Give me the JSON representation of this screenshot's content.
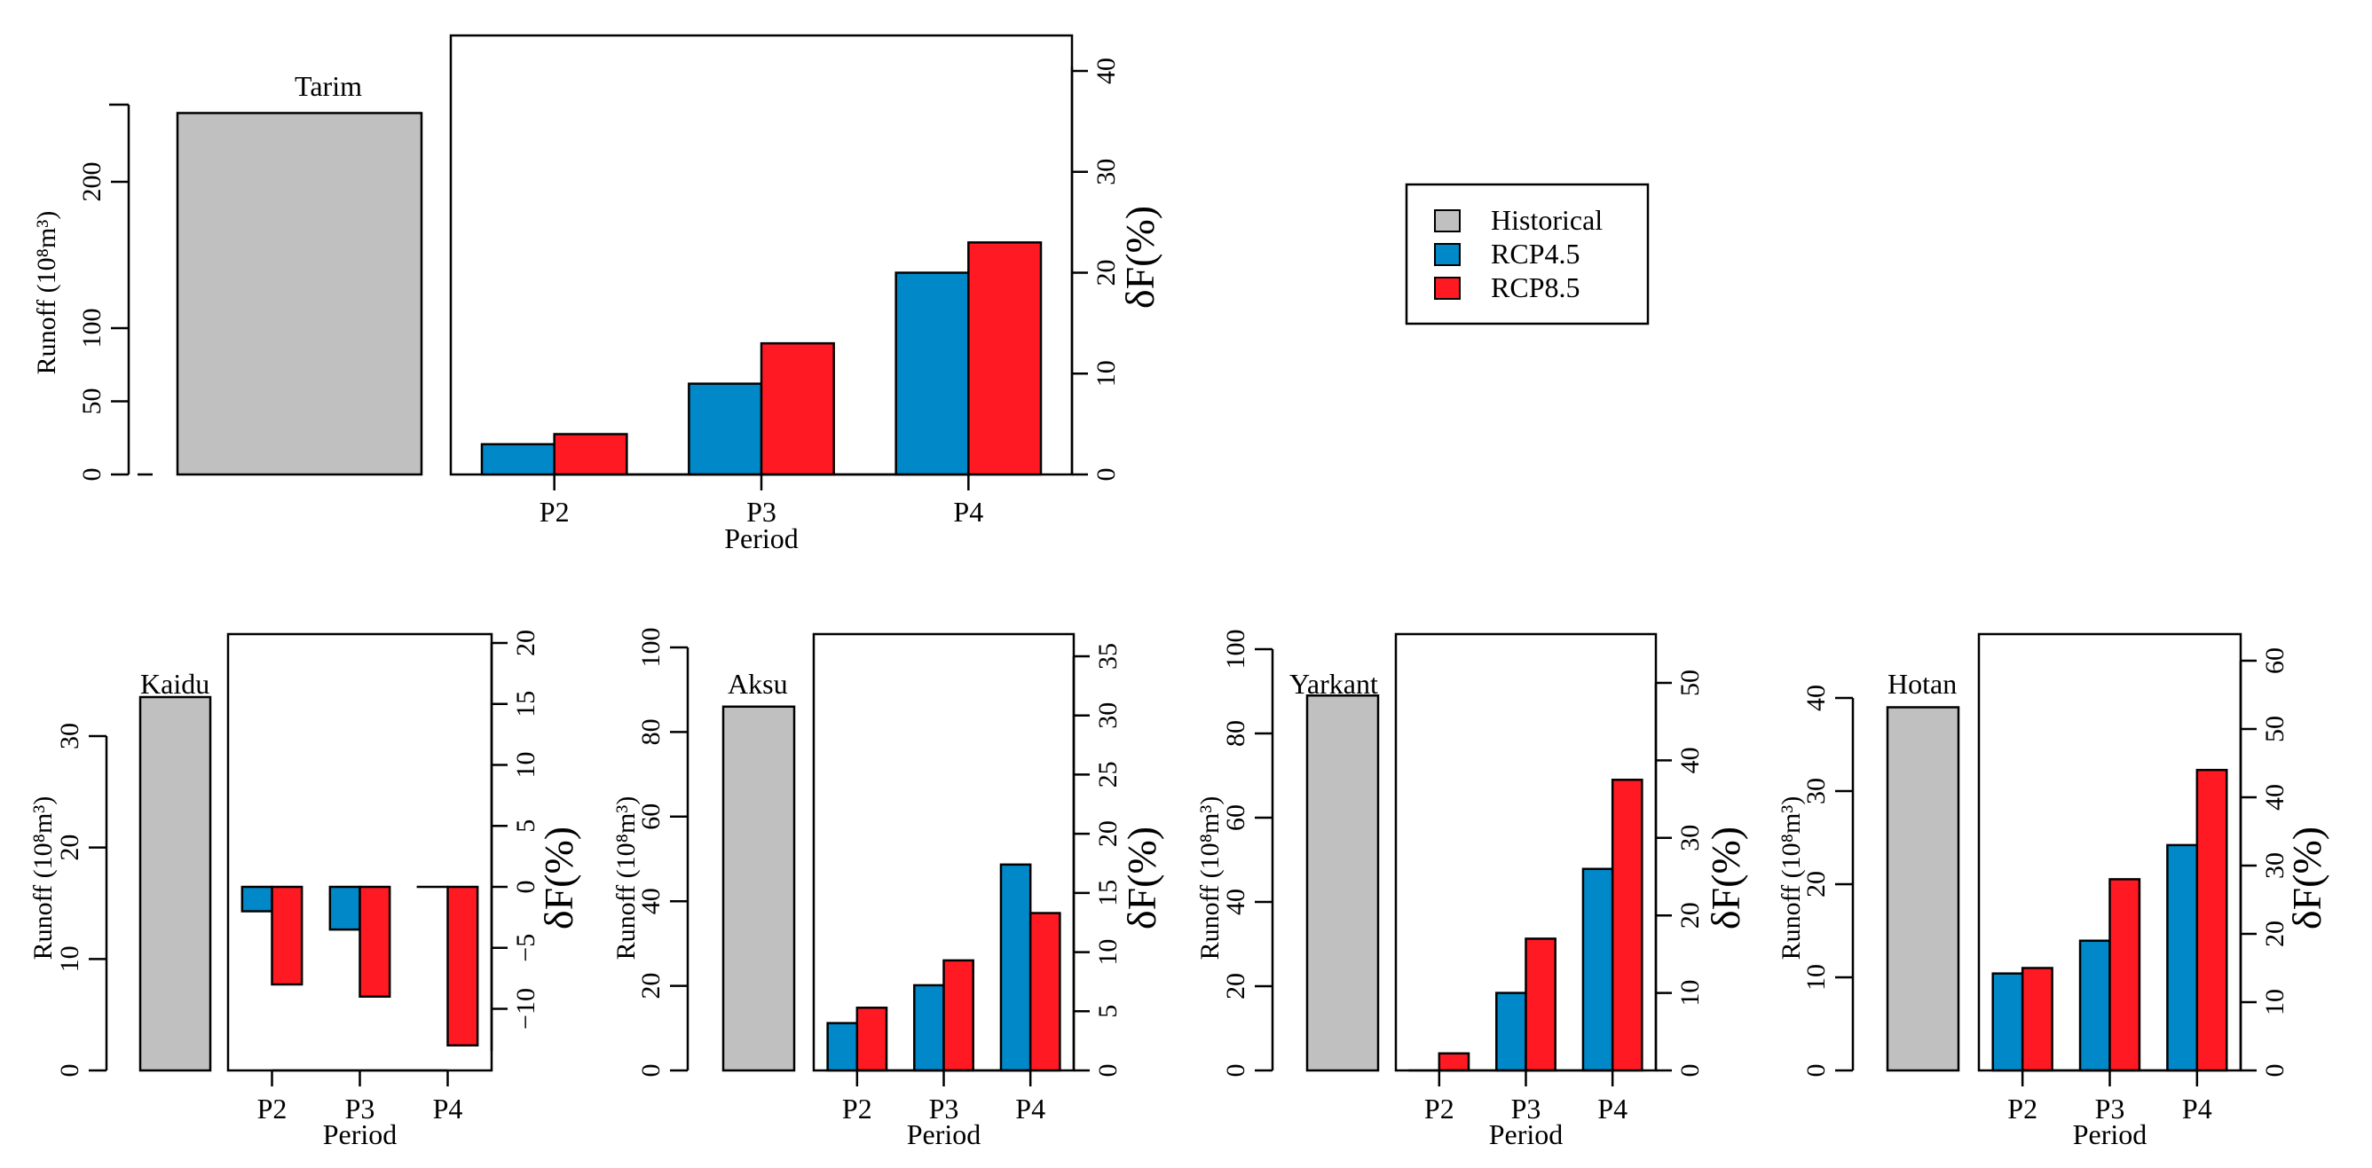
{
  "colors": {
    "historical": "#c0c0c0",
    "rcp45": "#0088c8",
    "rcp85": "#ff1a23"
  },
  "legend": {
    "placement": "top-right",
    "items": [
      {
        "label": "Historical",
        "color": "#c0c0c0"
      },
      {
        "label": "RCP4.5",
        "color": "#0088c8"
      },
      {
        "label": "RCP8.5",
        "color": "#ff1a23"
      }
    ]
  },
  "chart_data": [
    {
      "id": "tarim",
      "type": "bar",
      "title": "Tarim",
      "runoff_ylabel": "Runoff (10⁸m³)",
      "runoff_ylim": [
        0,
        250
      ],
      "runoff_ticks": [
        0,
        50,
        100,
        200
      ],
      "historical_runoff": 247,
      "delta_ylabel": "δF(%)",
      "delta_ylim": [
        0,
        40
      ],
      "delta_ticks": [
        0,
        10,
        20,
        30,
        40
      ],
      "categories": [
        "P2",
        "P3",
        "P4"
      ],
      "xlabel": "Period",
      "series": [
        {
          "name": "RCP4.5",
          "values": [
            3,
            9,
            20
          ]
        },
        {
          "name": "RCP8.5",
          "values": [
            4,
            13,
            23
          ]
        }
      ]
    },
    {
      "id": "kaidu",
      "type": "bar",
      "title": "Kaidu",
      "runoff_ylabel": "Runoff (10⁸m³)",
      "runoff_ylim": [
        0,
        35
      ],
      "runoff_ticks": [
        0,
        10,
        20,
        30
      ],
      "historical_runoff": 33.5,
      "delta_ylabel": "δF(%)",
      "delta_ylim": [
        -14,
        20
      ],
      "delta_ticks": [
        -10,
        -5,
        0,
        5,
        10,
        15,
        20
      ],
      "categories": [
        "P2",
        "P3",
        "P4"
      ],
      "xlabel": "Period",
      "series": [
        {
          "name": "RCP4.5",
          "values": [
            -2,
            -3.5,
            0
          ]
        },
        {
          "name": "RCP8.5",
          "values": [
            -8,
            -9,
            -13
          ]
        }
      ]
    },
    {
      "id": "aksu",
      "type": "bar",
      "title": "Aksu",
      "runoff_ylabel": "Runoff (10⁸m³)",
      "runoff_ylim": [
        0,
        100
      ],
      "runoff_ticks": [
        0,
        20,
        40,
        60,
        80,
        100
      ],
      "historical_runoff": 86,
      "delta_ylabel": "δF(%)",
      "delta_ylim": [
        0,
        36.5
      ],
      "delta_ticks": [
        0,
        5,
        10,
        15,
        20,
        25,
        30,
        35
      ],
      "categories": [
        "P2",
        "P3",
        "P4"
      ],
      "xlabel": "Period",
      "series": [
        {
          "name": "RCP4.5",
          "values": [
            4,
            7.2,
            17.4
          ]
        },
        {
          "name": "RCP8.5",
          "values": [
            5.3,
            9.3,
            13.3
          ]
        }
      ]
    },
    {
      "id": "yarkant",
      "type": "bar",
      "title": "Yarkant",
      "runoff_ylabel": "Runoff (10⁸m³)",
      "runoff_ylim": [
        0,
        100
      ],
      "runoff_ticks": [
        0,
        20,
        40,
        60,
        80,
        100
      ],
      "historical_runoff": 89,
      "delta_ylabel": "δF(%)",
      "delta_ylim": [
        0,
        57
      ],
      "delta_ticks": [
        0,
        10,
        20,
        30,
        40,
        50
      ],
      "categories": [
        "P2",
        "P3",
        "P4"
      ],
      "xlabel": "Period",
      "series": [
        {
          "name": "RCP4.5",
          "values": [
            0,
            10,
            26
          ]
        },
        {
          "name": "RCP8.5",
          "values": [
            2.2,
            17,
            37.5
          ]
        }
      ]
    },
    {
      "id": "hotan",
      "type": "bar",
      "title": "Hotan",
      "runoff_ylabel": "Runoff (10⁸m³)",
      "runoff_ylim": [
        0,
        45
      ],
      "runoff_ticks": [
        0,
        10,
        20,
        30,
        40
      ],
      "historical_runoff": 39,
      "delta_ylabel": "δF(%)",
      "delta_ylim": [
        0,
        64
      ],
      "delta_ticks": [
        0,
        10,
        20,
        30,
        40,
        50,
        60
      ],
      "categories": [
        "P2",
        "P3",
        "P4"
      ],
      "xlabel": "Period",
      "series": [
        {
          "name": "RCP4.5",
          "values": [
            14.2,
            19,
            33
          ]
        },
        {
          "name": "RCP8.5",
          "values": [
            15,
            28,
            44
          ]
        }
      ]
    }
  ]
}
